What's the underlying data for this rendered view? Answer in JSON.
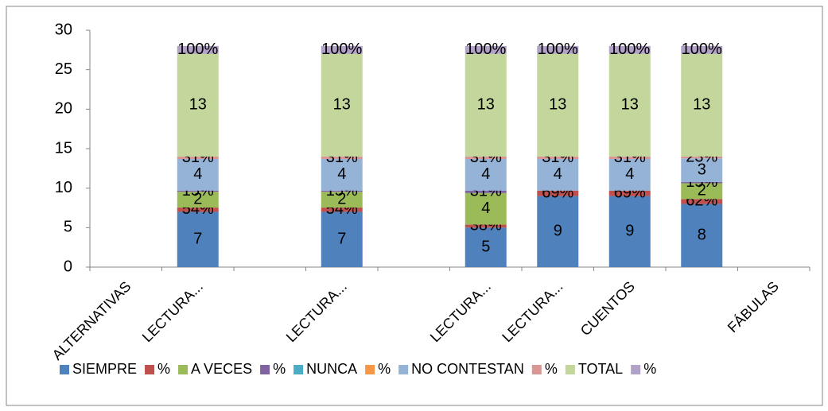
{
  "chart_data": {
    "type": "bar",
    "stacked": true,
    "categories": [
      "ALTERNATIVAS",
      "LECTURA...",
      null,
      "LECTURA...",
      null,
      "LECTURA...",
      "LECTURA...",
      "CUENTOS",
      null,
      "FÁBULAS"
    ],
    "ylim": [
      0,
      30
    ],
    "yticks": [
      0,
      5,
      10,
      15,
      20,
      25,
      30
    ],
    "grid": false,
    "legend": "bottom",
    "series": [
      {
        "name": "SIEMPRE",
        "color": "#4f81bd",
        "values": [
          null,
          7,
          null,
          7,
          null,
          5,
          9,
          9,
          8,
          null
        ]
      },
      {
        "name": "%",
        "color": "#c0504d",
        "values": [
          null,
          0.54,
          null,
          0.54,
          null,
          0.38,
          0.69,
          0.69,
          0.62,
          null
        ],
        "value_labels": [
          null,
          "54%",
          null,
          "54%",
          null,
          "38%",
          "69%",
          "69%",
          "62%",
          null
        ]
      },
      {
        "name": "A VECES",
        "color": "#9bbb59",
        "values": [
          null,
          2,
          null,
          2,
          null,
          4,
          null,
          null,
          2,
          null
        ]
      },
      {
        "name": "%",
        "color": "#8064a2",
        "values": [
          null,
          0.15,
          null,
          0.15,
          null,
          0.31,
          null,
          null,
          0.15,
          null
        ],
        "value_labels": [
          null,
          "15%",
          null,
          "15%",
          null,
          "31%",
          null,
          null,
          "15%",
          null
        ]
      },
      {
        "name": "NUNCA",
        "color": "#4bacc6",
        "values": [
          null,
          null,
          null,
          null,
          null,
          null,
          null,
          null,
          null,
          null
        ]
      },
      {
        "name": "%",
        "color": "#f79646",
        "values": [
          null,
          null,
          null,
          null,
          null,
          null,
          null,
          null,
          null,
          null
        ]
      },
      {
        "name": "NO CONTESTAN",
        "color": "#95b3d7",
        "values": [
          null,
          4,
          null,
          4,
          null,
          4,
          4,
          4,
          3,
          null
        ]
      },
      {
        "name": "%",
        "color": "#d99694",
        "values": [
          null,
          0.31,
          null,
          0.31,
          null,
          0.31,
          0.31,
          0.31,
          0.23,
          null
        ],
        "value_labels": [
          null,
          "31%",
          null,
          "31%",
          null,
          "31%",
          "31%",
          "31%",
          "23%",
          null
        ]
      },
      {
        "name": "TOTAL",
        "color": "#c3d69b",
        "values": [
          null,
          13,
          null,
          13,
          null,
          13,
          13,
          13,
          13,
          null
        ]
      },
      {
        "name": "%",
        "color": "#b3a2c7",
        "values": [
          null,
          1,
          null,
          1,
          null,
          1,
          1,
          1,
          1,
          null
        ],
        "value_labels": [
          null,
          "100%",
          null,
          "100%",
          null,
          "100%",
          "100%",
          "100%",
          "100%",
          null
        ]
      }
    ]
  }
}
